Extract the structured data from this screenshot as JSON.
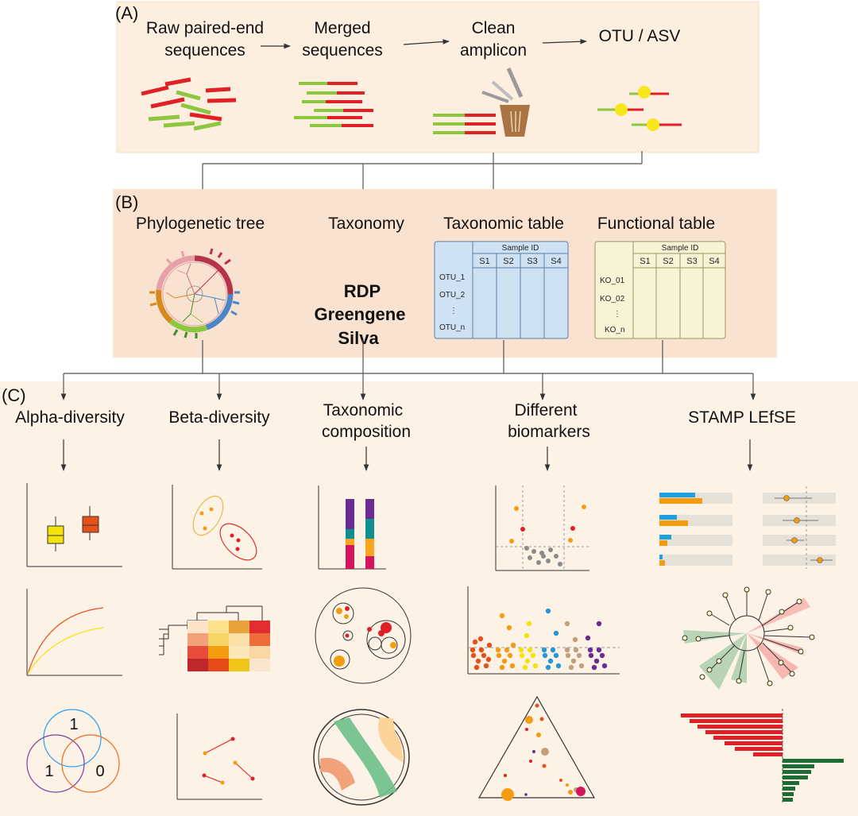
{
  "panel_a": {
    "label": "(A)",
    "steps": [
      {
        "line1": "Raw paired-end",
        "line2": "sequences"
      },
      {
        "line1": "Merged",
        "line2": "sequences"
      },
      {
        "line1": "Clean",
        "line2": "amplicon"
      },
      {
        "line1": "OTU / ASV",
        "line2": ""
      }
    ]
  },
  "panel_b": {
    "label": "(B)",
    "phylogenetic_title": "Phylogenetic tree",
    "taxonomy_title": "Taxonomy",
    "taxonomy_dbs": [
      "RDP",
      "Greengene",
      "Silva"
    ],
    "taxonomic_table": {
      "title": "Taxonomic table",
      "header": "Sample ID",
      "columns": [
        "S1",
        "S2",
        "S3",
        "S4"
      ],
      "rows": [
        "OTU_1",
        "OTU_2",
        "⋮",
        "OTU_n"
      ]
    },
    "functional_table": {
      "title": "Functional table",
      "header": "Sample ID",
      "columns": [
        "S1",
        "S2",
        "S3",
        "S4"
      ],
      "rows": [
        "KO_01",
        "KO_02",
        "⋮",
        "KO_n"
      ]
    }
  },
  "panel_c": {
    "label": "(C)",
    "analyses": [
      {
        "line1": "Alpha-diversity",
        "line2": ""
      },
      {
        "line1": "Beta-diversity",
        "line2": ""
      },
      {
        "line1": "Taxonomic",
        "line2": "composition"
      },
      {
        "line1": "Different",
        "line2": "biomarkers"
      },
      {
        "line1": "STAMP LEfSE",
        "line2": ""
      }
    ],
    "venn_values": [
      "1",
      "1",
      "0"
    ]
  },
  "colors": {
    "panel_bg": "#fcefe0",
    "panel_b_bg": "#f9e2cf",
    "red": "#e11f26",
    "green": "#8dc63f",
    "yellow": "#f8e71c",
    "orange": "#f39c12",
    "table_blue": "#cfe2f3",
    "table_yellow": "#f7f4d6"
  }
}
